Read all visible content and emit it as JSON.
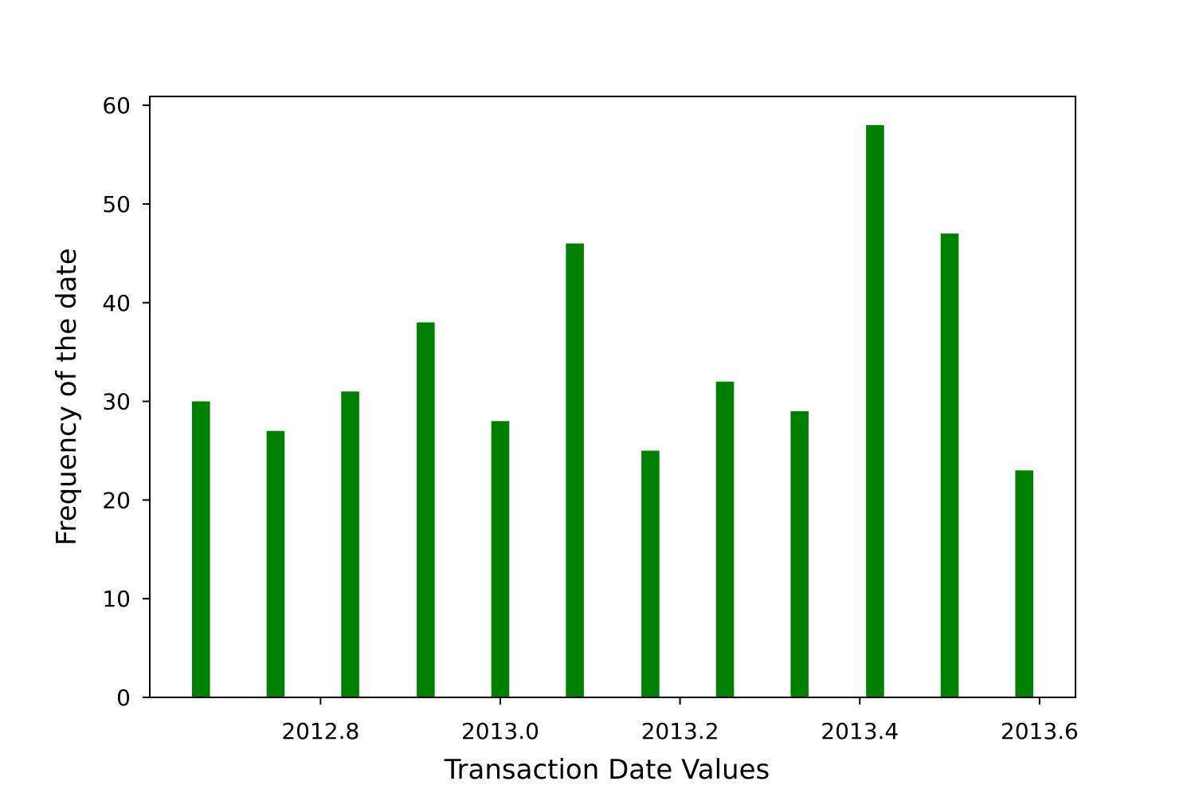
{
  "chart_data": {
    "type": "bar",
    "title": "",
    "xlabel": "Transaction Date Values",
    "ylabel": "Frequency of the date",
    "x": [
      2012.667,
      2012.75,
      2012.833,
      2012.917,
      2013.0,
      2013.083,
      2013.167,
      2013.25,
      2013.333,
      2013.417,
      2013.5,
      2013.583
    ],
    "values": [
      30,
      27,
      31,
      38,
      28,
      46,
      25,
      32,
      29,
      58,
      47,
      23
    ],
    "bar_width": 0.02,
    "xlim": [
      2012.61,
      2013.64
    ],
    "ylim": [
      0,
      60.9
    ],
    "xticks": [
      2012.8,
      2013.0,
      2013.2,
      2013.4,
      2013.6
    ],
    "xtick_labels": [
      "2012.8",
      "2013.0",
      "2013.2",
      "2013.4",
      "2013.6"
    ],
    "yticks": [
      0,
      10,
      20,
      30,
      40,
      50,
      60
    ],
    "ytick_labels": [
      "0",
      "10",
      "20",
      "30",
      "40",
      "50",
      "60"
    ],
    "grid": false,
    "legend": "none",
    "bar_color": "#008000"
  }
}
